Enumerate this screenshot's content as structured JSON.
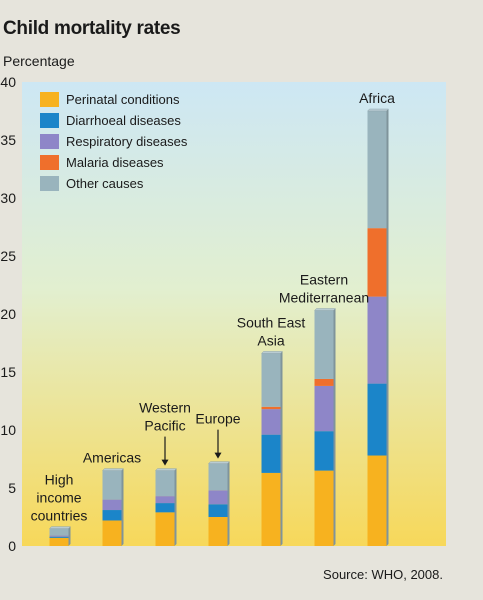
{
  "title": "Child mortality rates",
  "ylabel": "Percentage",
  "source": "Source: WHO, 2008.",
  "chart_data": {
    "type": "bar",
    "stacked": true,
    "title": "Child mortality rates",
    "ylabel": "Percentage",
    "xlabel": "",
    "ylim": [
      0,
      40
    ],
    "yticks": [
      0,
      5,
      10,
      15,
      20,
      25,
      30,
      35,
      40
    ],
    "grid": false,
    "legend_position": "top-left",
    "background": "vertical gradient from light blue (top) to yellow (bottom)",
    "categories": [
      "High income countries",
      "Americas",
      "Western Pacific",
      "Europe",
      "South East Asia",
      "Eastern Mediterranean",
      "Africa"
    ],
    "category_label_lines": [
      [
        "High",
        "income",
        "countries"
      ],
      [
        "Americas"
      ],
      [
        "Western",
        "Pacific"
      ],
      [
        "Europe"
      ],
      [
        "South East",
        "Asia"
      ],
      [
        "Eastern",
        "Mediterranean"
      ],
      [
        "Africa"
      ]
    ],
    "category_label_arrows": [
      false,
      false,
      true,
      true,
      false,
      false,
      false
    ],
    "series": [
      {
        "name": "Perinatal conditions",
        "color": "#f7b21f",
        "values": [
          0.7,
          2.2,
          2.9,
          2.5,
          6.3,
          6.5,
          7.8
        ]
      },
      {
        "name": "Diarrhoeal diseases",
        "color": "#1b85c9",
        "values": [
          0.1,
          0.9,
          0.8,
          1.1,
          3.3,
          3.4,
          6.2
        ]
      },
      {
        "name": "Respiratory diseases",
        "color": "#8e86c8",
        "values": [
          0.1,
          0.9,
          0.6,
          1.2,
          2.2,
          3.9,
          7.5
        ]
      },
      {
        "name": "Malaria diseases",
        "color": "#ef6f2c",
        "values": [
          0,
          0,
          0,
          0,
          0.2,
          0.6,
          5.9
        ]
      },
      {
        "name": "Other causes",
        "color": "#99b4bd",
        "values": [
          0.6,
          2.5,
          2.2,
          2.3,
          4.6,
          5.9,
          10.1
        ]
      }
    ]
  }
}
